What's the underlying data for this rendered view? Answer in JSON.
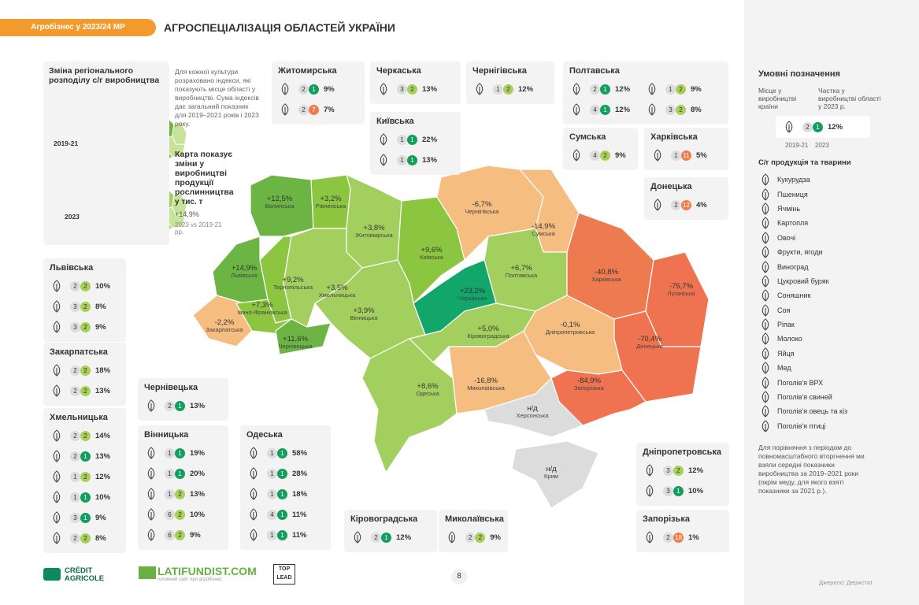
{
  "header": {
    "badge": "Агробізнес у 2023/24 МР",
    "title": "АГРОСПЕЦІАЛІЗАЦІЯ ОБЛАСТЕЙ УКРАЇНИ"
  },
  "intro": {
    "title": "Зміна регіонального розподілу с/г виробництва",
    "text": "Для кожної культури розраховано індекси, які показують місце області у виробництві. Сума індексів дає загальний показник для 2019–2021 років і 2023 року.",
    "maps": [
      "2019-21",
      "2023"
    ]
  },
  "map_note": {
    "title": "Карта показує зміни у виробництві продукції рослинництва",
    "unit": "у тис. т",
    "example": "+14,9%",
    "period": "2023 vs 2019-21 рр."
  },
  "regions": [
    {
      "name": "Волинська",
      "change": "+12,5%"
    },
    {
      "name": "Рівненська",
      "change": "+3,2%"
    },
    {
      "name": "Житомирська",
      "change": "+3,8%"
    },
    {
      "name": "Київська",
      "change": "+9,6%"
    },
    {
      "name": "Чернігівська",
      "change": "-6,7%"
    },
    {
      "name": "Сумська",
      "change": "-14,9%"
    },
    {
      "name": "Львівська",
      "change": "+14,9%"
    },
    {
      "name": "Тернопільська",
      "change": "+9,2%"
    },
    {
      "name": "Хмельницька",
      "change": "+3,5%"
    },
    {
      "name": "Полтавська",
      "change": "+6,7%"
    },
    {
      "name": "Харківська",
      "change": "-40,8%"
    },
    {
      "name": "Луганська",
      "change": "-75,7%"
    },
    {
      "name": "Закарпатська",
      "change": "-2,2%"
    },
    {
      "name": "Івано-Франківська",
      "change": "+7,3%"
    },
    {
      "name": "Вінницька",
      "change": "+3,9%"
    },
    {
      "name": "Черкаська",
      "change": "+23,2%"
    },
    {
      "name": "Чернівецька",
      "change": "+11,6%"
    },
    {
      "name": "Кіровоградська",
      "change": "+5,0%"
    },
    {
      "name": "Дніпропетровська",
      "change": "-0,1%"
    },
    {
      "name": "Донецька",
      "change": "-70,4%"
    },
    {
      "name": "Одеська",
      "change": "+8,6%"
    },
    {
      "name": "Миколаївська",
      "change": "-16,8%"
    },
    {
      "name": "Запорізька",
      "change": "-84,9%"
    },
    {
      "name": "Херсонська",
      "change": "н/д"
    },
    {
      "name": "Крим",
      "change": "н/д"
    }
  ],
  "cards": [
    {
      "name": "Житомирська",
      "items": [
        {
          "rank_2019_21": 2,
          "rank_2023": 1,
          "share": "9%"
        },
        {
          "rank_2019_21": 2,
          "rank_2023": 7,
          "share": "7%"
        }
      ]
    },
    {
      "name": "Черкаська",
      "items": [
        {
          "rank_2019_21": 3,
          "rank_2023": 2,
          "share": "13%"
        }
      ]
    },
    {
      "name": "Київська",
      "items": [
        {
          "rank_2019_21": 1,
          "rank_2023": 1,
          "share": "22%"
        },
        {
          "rank_2019_21": 1,
          "rank_2023": 1,
          "share": "13%"
        }
      ]
    },
    {
      "name": "Чернігівська",
      "items": [
        {
          "rank_2019_21": 1,
          "rank_2023": 2,
          "share": "12%"
        }
      ]
    },
    {
      "name": "Полтавська",
      "items": [
        {
          "rank_2019_21": 2,
          "rank_2023": 1,
          "share": "12%"
        },
        {
          "rank_2019_21": 1,
          "rank_2023": 2,
          "share": "9%"
        },
        {
          "rank_2019_21": 4,
          "rank_2023": 1,
          "share": "12%"
        },
        {
          "rank_2019_21": 3,
          "rank_2023": 2,
          "share": "8%"
        }
      ]
    },
    {
      "name": "Сумська",
      "items": [
        {
          "rank_2019_21": 4,
          "rank_2023": 2,
          "share": "9%"
        }
      ]
    },
    {
      "name": "Харківська",
      "items": [
        {
          "rank_2019_21": 1,
          "rank_2023": 11,
          "share": "5%"
        }
      ]
    },
    {
      "name": "Донецька",
      "items": [
        {
          "rank_2019_21": 2,
          "rank_2023": 12,
          "share": "4%"
        }
      ]
    },
    {
      "name": "Львівська",
      "items": [
        {
          "rank_2019_21": 2,
          "rank_2023": 2,
          "share": "10%"
        },
        {
          "rank_2019_21": 3,
          "rank_2023": 2,
          "share": "8%"
        },
        {
          "rank_2019_21": 3,
          "rank_2023": 2,
          "share": "9%"
        }
      ]
    },
    {
      "name": "Закарпатська",
      "items": [
        {
          "rank_2019_21": 2,
          "rank_2023": 2,
          "share": "18%"
        },
        {
          "rank_2019_21": 2,
          "rank_2023": 2,
          "share": "13%"
        }
      ]
    },
    {
      "name": "Хмельницька",
      "items": [
        {
          "rank_2019_21": 2,
          "rank_2023": 2,
          "share": "14%"
        },
        {
          "rank_2019_21": 2,
          "rank_2023": 1,
          "share": "13%"
        },
        {
          "rank_2019_21": 1,
          "rank_2023": 2,
          "share": "12%"
        },
        {
          "rank_2019_21": 1,
          "rank_2023": 1,
          "share": "10%"
        },
        {
          "rank_2019_21": 3,
          "rank_2023": 1,
          "share": "9%"
        },
        {
          "rank_2019_21": 2,
          "rank_2023": 2,
          "share": "8%"
        }
      ]
    },
    {
      "name": "Чернівецька",
      "items": [
        {
          "rank_2019_21": 2,
          "rank_2023": 1,
          "share": "13%"
        }
      ]
    },
    {
      "name": "Вінницька",
      "items": [
        {
          "rank_2019_21": 1,
          "rank_2023": 1,
          "share": "19%"
        },
        {
          "rank_2019_21": 1,
          "rank_2023": 1,
          "share": "20%"
        },
        {
          "rank_2019_21": 1,
          "rank_2023": 2,
          "share": "13%"
        },
        {
          "rank_2019_21": 6,
          "rank_2023": 2,
          "share": "10%"
        },
        {
          "rank_2019_21": 6,
          "rank_2023": 2,
          "share": "9%"
        }
      ]
    },
    {
      "name": "Одеська",
      "items": [
        {
          "rank_2019_21": 1,
          "rank_2023": 1,
          "share": "58%"
        },
        {
          "rank_2019_21": 1,
          "rank_2023": 1,
          "share": "28%"
        },
        {
          "rank_2019_21": 1,
          "rank_2023": 1,
          "share": "18%"
        },
        {
          "rank_2019_21": 4,
          "rank_2023": 1,
          "share": "11%"
        },
        {
          "rank_2019_21": 1,
          "rank_2023": 1,
          "share": "11%"
        }
      ]
    },
    {
      "name": "Кіровоградська",
      "items": [
        {
          "rank_2019_21": 2,
          "rank_2023": 1,
          "share": "12%"
        }
      ]
    },
    {
      "name": "Миколаївська",
      "items": [
        {
          "rank_2019_21": 2,
          "rank_2023": 2,
          "share": "9%"
        }
      ]
    },
    {
      "name": "Дніпропетровська",
      "items": [
        {
          "rank_2019_21": 3,
          "rank_2023": 2,
          "share": "12%"
        },
        {
          "rank_2019_21": 3,
          "rank_2023": 1,
          "share": "10%"
        }
      ]
    },
    {
      "name": "Запорізька",
      "items": [
        {
          "rank_2019_21": 2,
          "rank_2023": 18,
          "share": "1%"
        }
      ]
    }
  ],
  "legend": {
    "title": "Умовні позначення",
    "place_label": "Місце у виробництві країни",
    "share_label": "Частка у виробництві області у 2023 р.",
    "example": {
      "rank_2019_21": 2,
      "rank_2023": 1,
      "share": "12%"
    },
    "years": [
      "2019-21",
      "2023"
    ],
    "products_title": "С/г продукція та тварини",
    "products": [
      "Кукурудза",
      "Пшениця",
      "Ячмінь",
      "Картопля",
      "Овочі",
      "Фрукти, ягоди",
      "Виноград",
      "Цукровий буряк",
      "Соняшник",
      "Соя",
      "Ріпак",
      "Молоко",
      "Яйця",
      "Мед",
      "Поголів'я ВРХ",
      "Поголів'я свиней",
      "Поголів'я овець та кіз",
      "Поголів'я птиці"
    ],
    "note": "Для порівняння з періодом до повномасштабного вторгнення ми взяли середні показники виробництва за 2019–2021 роки (окрім меду, для якого взяті показники за 2021 р.)."
  },
  "footer": {
    "logos": [
      "CRÉDIT AGRICOLE",
      "LATIFUNDIST.COM",
      "головний сайт про агробізнес",
      "TOP LEAD"
    ],
    "page": "8",
    "source": "Джерело: Держстат"
  }
}
